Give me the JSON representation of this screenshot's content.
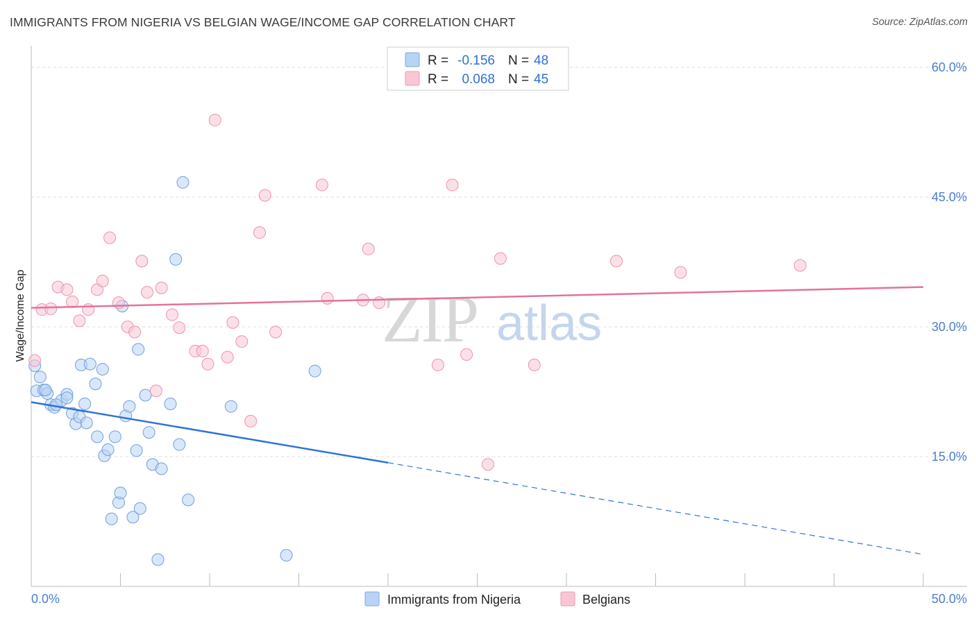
{
  "title": "IMMIGRANTS FROM NIGERIA VS BELGIAN WAGE/INCOME GAP CORRELATION CHART",
  "source": "Source: ZipAtlas.com",
  "watermark": {
    "zip": "ZIP",
    "atlas": "atlas"
  },
  "legend": {
    "r_label": "R =",
    "n_label": "N =",
    "rows": [
      {
        "r": "-0.156",
        "n": "48",
        "fill": "#b9d3f5",
        "stroke": "#7ba7e0"
      },
      {
        "r": "0.068",
        "n": "45",
        "fill": "#f9c6d4",
        "stroke": "#ee9ab3"
      }
    ]
  },
  "bottom_legend": [
    {
      "label": "Immigrants from Nigeria",
      "fill": "#b9d3f5",
      "stroke": "#7ba7e0"
    },
    {
      "label": "Belgians",
      "fill": "#f9c6d4",
      "stroke": "#ee9ab3"
    }
  ],
  "chart_data": {
    "type": "scatter",
    "title": "IMMIGRANTS FROM NIGERIA VS BELGIAN WAGE/INCOME GAP CORRELATION CHART",
    "xlabel": "",
    "ylabel": "Wage/Income Gap",
    "xlim": [
      0,
      50
    ],
    "ylim": [
      0,
      60
    ],
    "x_tick_labels": [
      "0.0%",
      "50.0%"
    ],
    "y_ticks": [
      15,
      30,
      45,
      60
    ],
    "y_tick_labels": [
      "15.0%",
      "30.0%",
      "45.0%",
      "60.0%"
    ],
    "grid": "horizontal dashed",
    "legend_position": "top-center",
    "colors": {
      "nigeria": "#2f73d8",
      "belgians": "#e4729a"
    },
    "series": [
      {
        "name": "Immigrants from Nigeria",
        "r": -0.156,
        "n": 48,
        "trend": {
          "x0": 0,
          "y0": 21.3,
          "x1": 20,
          "y1": 14.3,
          "dashed_to_x": 50,
          "dashed_to_y": 3.7
        },
        "points": [
          [
            0.2,
            25.5
          ],
          [
            0.3,
            22.6
          ],
          [
            0.5,
            24.2
          ],
          [
            0.7,
            22.7
          ],
          [
            0.9,
            22.3
          ],
          [
            1.1,
            21.0
          ],
          [
            1.3,
            20.7
          ],
          [
            1.7,
            21.5
          ],
          [
            2.0,
            22.2
          ],
          [
            2.3,
            20.0
          ],
          [
            2.5,
            18.8
          ],
          [
            2.7,
            19.6
          ],
          [
            2.8,
            25.6
          ],
          [
            3.0,
            21.1
          ],
          [
            3.1,
            18.9
          ],
          [
            3.3,
            25.7
          ],
          [
            3.6,
            23.4
          ],
          [
            3.7,
            17.3
          ],
          [
            4.0,
            25.1
          ],
          [
            4.1,
            15.1
          ],
          [
            4.3,
            15.8
          ],
          [
            4.5,
            7.8
          ],
          [
            4.7,
            17.3
          ],
          [
            4.9,
            9.7
          ],
          [
            5.0,
            10.8
          ],
          [
            5.1,
            32.4
          ],
          [
            5.3,
            19.7
          ],
          [
            5.5,
            20.8
          ],
          [
            5.7,
            8.0
          ],
          [
            5.9,
            15.7
          ],
          [
            6.0,
            27.4
          ],
          [
            6.1,
            9.0
          ],
          [
            6.4,
            22.1
          ],
          [
            6.6,
            17.8
          ],
          [
            6.8,
            14.1
          ],
          [
            7.1,
            3.1
          ],
          [
            7.3,
            13.6
          ],
          [
            7.8,
            21.1
          ],
          [
            8.1,
            37.8
          ],
          [
            8.3,
            16.4
          ],
          [
            8.5,
            46.7
          ],
          [
            8.8,
            10.0
          ],
          [
            11.2,
            20.8
          ],
          [
            14.3,
            3.6
          ],
          [
            15.9,
            24.9
          ],
          [
            1.4,
            21.0
          ],
          [
            2.0,
            21.8
          ],
          [
            0.8,
            22.7
          ]
        ]
      },
      {
        "name": "Belgians",
        "r": 0.068,
        "n": 45,
        "trend": {
          "x0": 0,
          "y0": 32.2,
          "x1": 50,
          "y1": 34.6
        },
        "points": [
          [
            0.2,
            26.1
          ],
          [
            0.6,
            32.0
          ],
          [
            1.1,
            32.1
          ],
          [
            1.5,
            34.6
          ],
          [
            2.0,
            34.3
          ],
          [
            2.3,
            32.9
          ],
          [
            2.7,
            30.7
          ],
          [
            3.2,
            32.0
          ],
          [
            3.7,
            34.3
          ],
          [
            4.0,
            35.3
          ],
          [
            4.4,
            40.3
          ],
          [
            4.9,
            32.8
          ],
          [
            5.4,
            30.0
          ],
          [
            5.8,
            29.4
          ],
          [
            6.2,
            37.6
          ],
          [
            6.5,
            34.0
          ],
          [
            7.0,
            22.6
          ],
          [
            7.3,
            34.5
          ],
          [
            7.9,
            31.4
          ],
          [
            8.3,
            29.9
          ],
          [
            9.2,
            27.2
          ],
          [
            9.6,
            27.2
          ],
          [
            9.9,
            25.7
          ],
          [
            10.3,
            53.9
          ],
          [
            11.0,
            26.5
          ],
          [
            11.3,
            30.5
          ],
          [
            11.8,
            28.3
          ],
          [
            12.3,
            19.1
          ],
          [
            12.8,
            40.9
          ],
          [
            13.1,
            45.2
          ],
          [
            13.7,
            29.4
          ],
          [
            16.3,
            46.4
          ],
          [
            16.6,
            33.3
          ],
          [
            18.6,
            33.1
          ],
          [
            18.9,
            39.0
          ],
          [
            19.5,
            32.8
          ],
          [
            22.8,
            25.6
          ],
          [
            23.6,
            46.4
          ],
          [
            24.4,
            26.8
          ],
          [
            25.6,
            14.1
          ],
          [
            26.3,
            37.9
          ],
          [
            28.2,
            25.6
          ],
          [
            32.8,
            37.6
          ],
          [
            36.4,
            36.3
          ],
          [
            43.1,
            37.1
          ]
        ]
      }
    ]
  }
}
